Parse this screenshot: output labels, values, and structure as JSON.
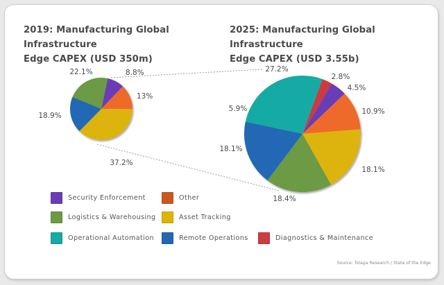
{
  "source": "Source: Tolaga Research / State of the Edge",
  "colors": {
    "Security Enforcement": "#6a3db6",
    "Other": "#ee6a2c",
    "Logistics & Warehousing": "#6c9a44",
    "Asset Tracking": "#ddb40a",
    "Operational Automation": "#16aaa4",
    "Remote Operations": "#2367b4",
    "Diagnostics & Maintenance": "#cc3b3e"
  },
  "legend_colors": {
    "Security Enforcement": "#6a3db6",
    "Other": "#c9581f",
    "Logistics & Warehousing": "#6c9a44",
    "Asset Tracking": "#ddb40a",
    "Operational Automation": "#16aaa4",
    "Remote Operations": "#2367b4",
    "Diagnostics & Maintenance": "#cc3b3e"
  },
  "chart_data": [
    {
      "type": "pie",
      "title": "2019: Manufacturing Global Infrastructure Edge CAPEX (USD 350m)",
      "total": "USD 350m",
      "slices": [
        {
          "name": "Security Enforcement",
          "value": 8.8,
          "label": "8.8%"
        },
        {
          "name": "Other",
          "value": 13.0,
          "label": "13%"
        },
        {
          "name": "Asset Tracking",
          "value": 37.2,
          "label": "37.2%"
        },
        {
          "name": "Remote Operations",
          "value": 18.9,
          "label": "18.9%"
        },
        {
          "name": "Logistics & Warehousing",
          "value": 22.1,
          "label": "22.1%"
        }
      ]
    },
    {
      "type": "pie",
      "title": "2025: Manufacturing Global Infrastructure Edge CAPEX (USD 3.55b)",
      "total": "USD 3.55b",
      "slices": [
        {
          "name": "Diagnostics & Maintenance",
          "value": 2.8,
          "label": "2.8%"
        },
        {
          "name": "Security Enforcement",
          "value": 4.5,
          "label": "4.5%"
        },
        {
          "name": "Other",
          "value": 10.9,
          "label": "10.9%"
        },
        {
          "name": "Asset Tracking",
          "value": 18.1,
          "label": "18.1%"
        },
        {
          "name": "Logistics & Warehousing",
          "value": 18.4,
          "label": "18.4%"
        },
        {
          "name": "Remote Operations",
          "value": 18.1,
          "label": "18.1%"
        },
        {
          "name": "Operational Automation",
          "value": 27.2,
          "label": "27.2%"
        }
      ],
      "extra_labels": [
        "5.9%"
      ]
    }
  ],
  "titles": {
    "left_line1": "2019: Manufacturing Global Infrastructure",
    "left_line2": "Edge CAPEX (USD 350m)",
    "right_line1": "2025: Manufacturing Global Infrastructure",
    "right_line2": "Edge CAPEX (USD 3.55b)"
  },
  "legend": [
    [
      "Security Enforcement",
      "Other"
    ],
    [
      "Logistics & Warehousing",
      "Asset Tracking"
    ],
    [
      "Operational Automation",
      "Remote Operations",
      "Diagnostics & Maintenance"
    ]
  ]
}
